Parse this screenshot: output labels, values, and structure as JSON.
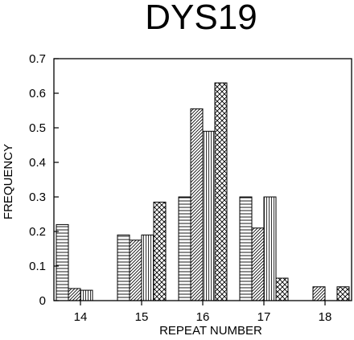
{
  "chart_data": {
    "type": "bar",
    "title": "DYS19",
    "xlabel": "REPEAT NUMBER",
    "ylabel": "FREQUENCY",
    "ylim": [
      0,
      0.7
    ],
    "yticks": [
      "0",
      "0.1",
      "0.2",
      "0.3",
      "0.4",
      "0.5",
      "0.6",
      "0.7"
    ],
    "categories": [
      "14",
      "15",
      "16",
      "17",
      "18"
    ],
    "series": [
      {
        "pattern": "horizontal-lines",
        "values": [
          0.22,
          0.19,
          0.3,
          0.3,
          0.0
        ]
      },
      {
        "pattern": "diagonal-lines",
        "values": [
          0.035,
          0.175,
          0.555,
          0.21,
          0.04
        ]
      },
      {
        "pattern": "vertical-lines",
        "values": [
          0.03,
          0.19,
          0.49,
          0.3,
          0.0
        ]
      },
      {
        "pattern": "crosshatch",
        "values": [
          0.0,
          0.285,
          0.63,
          0.065,
          0.04
        ]
      }
    ],
    "grid": false,
    "legend": "none"
  }
}
